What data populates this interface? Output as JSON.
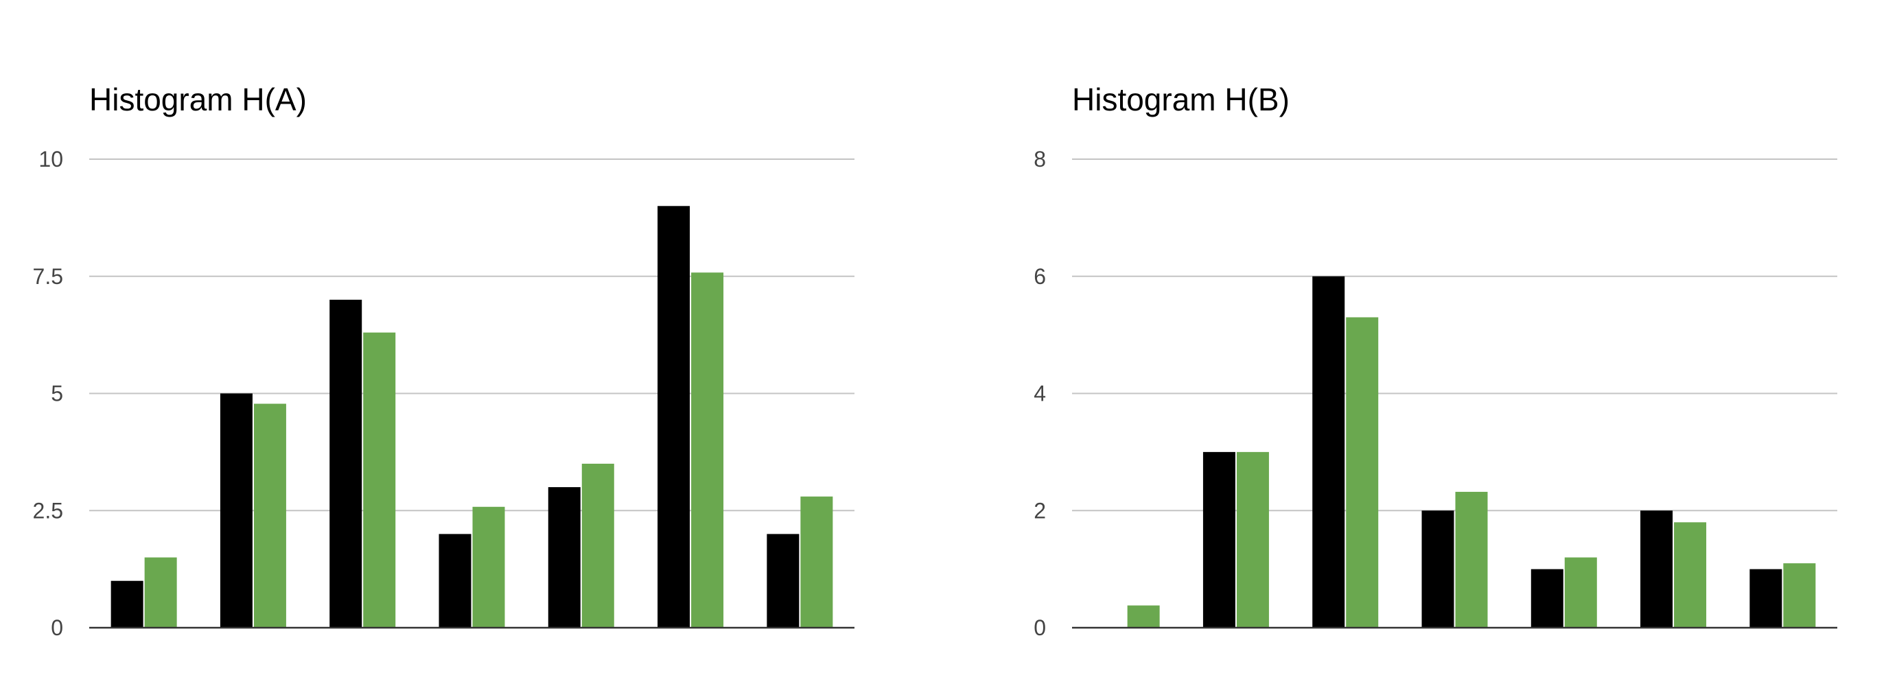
{
  "chart_data": [
    {
      "type": "bar",
      "title": "Histogram H(A)",
      "categories": [
        "",
        "",
        "",
        "",
        "",
        "",
        ""
      ],
      "series": [
        {
          "color": "#000000",
          "values": [
            1,
            5,
            7,
            2,
            3,
            9,
            2
          ]
        },
        {
          "color": "#6aa84f",
          "values": [
            1.5,
            4.78,
            6.3,
            2.58,
            3.5,
            7.58,
            2.8
          ]
        }
      ],
      "ylim": [
        0,
        10
      ],
      "yticks": [
        0,
        2.5,
        5,
        7.5,
        10
      ],
      "ytick_labels": [
        "0",
        "2.5",
        "5",
        "7.5",
        "10"
      ],
      "grid": true,
      "legend": "none"
    },
    {
      "type": "bar",
      "title": "Histogram H(B)",
      "categories": [
        "",
        "",
        "",
        "",
        "",
        "",
        ""
      ],
      "series": [
        {
          "color": "#000000",
          "values": [
            0,
            3,
            6,
            2,
            1,
            2,
            1
          ]
        },
        {
          "color": "#6aa84f",
          "values": [
            0.38,
            3,
            5.3,
            2.32,
            1.2,
            1.8,
            1.1
          ]
        }
      ],
      "ylim": [
        0,
        8
      ],
      "yticks": [
        0,
        2,
        4,
        6,
        8
      ],
      "ytick_labels": [
        "0",
        "2",
        "4",
        "6",
        "8"
      ],
      "grid": true,
      "legend": "none"
    }
  ]
}
